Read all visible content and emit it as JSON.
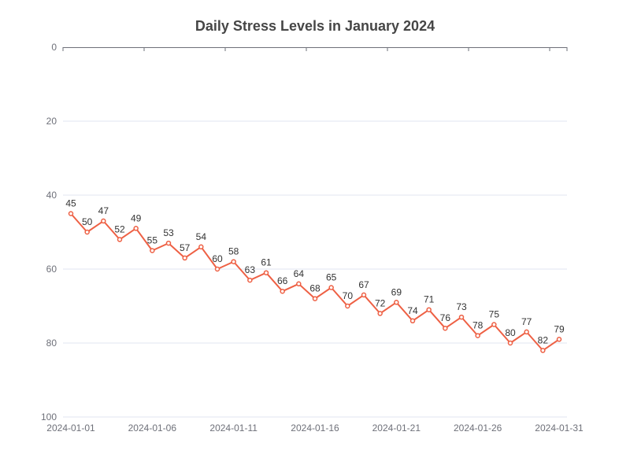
{
  "chart_data": {
    "type": "line",
    "title": "Daily Stress Levels in January 2024",
    "xlabel": "",
    "ylabel": "",
    "x": [
      "2024-01-01",
      "2024-01-02",
      "2024-01-03",
      "2024-01-04",
      "2024-01-05",
      "2024-01-06",
      "2024-01-07",
      "2024-01-08",
      "2024-01-09",
      "2024-01-10",
      "2024-01-11",
      "2024-01-12",
      "2024-01-13",
      "2024-01-14",
      "2024-01-15",
      "2024-01-16",
      "2024-01-17",
      "2024-01-18",
      "2024-01-19",
      "2024-01-20",
      "2024-01-21",
      "2024-01-22",
      "2024-01-23",
      "2024-01-24",
      "2024-01-25",
      "2024-01-26",
      "2024-01-27",
      "2024-01-28",
      "2024-01-29",
      "2024-01-30",
      "2024-01-31"
    ],
    "x_tick_labels": [
      "2024-01-01",
      "2024-01-06",
      "2024-01-11",
      "2024-01-16",
      "2024-01-21",
      "2024-01-26",
      "2024-01-31"
    ],
    "series": [
      {
        "values": [
          45,
          50,
          47,
          52,
          49,
          55,
          53,
          57,
          54,
          60,
          58,
          63,
          61,
          66,
          64,
          68,
          65,
          70,
          67,
          72,
          69,
          74,
          71,
          76,
          73,
          78,
          75,
          80,
          77,
          82,
          79
        ]
      }
    ],
    "ylim": [
      0,
      100
    ],
    "y_inverted": true,
    "y_ticks": [
      0,
      20,
      40,
      60,
      80,
      100
    ],
    "grid": true,
    "legend": "none",
    "colors": {
      "line": "#ee6044",
      "grid": "#e0e6f1",
      "axis": "#6e7079"
    }
  }
}
